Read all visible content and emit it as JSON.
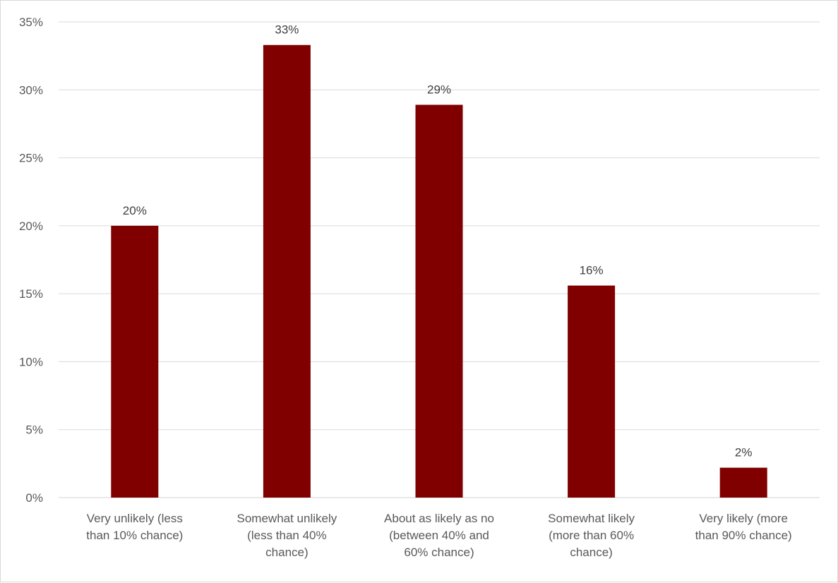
{
  "chart_data": {
    "type": "bar",
    "categories": [
      [
        "Very unlikely (less",
        "than 10% chance)"
      ],
      [
        "Somewhat unlikely",
        "(less than 40%",
        "chance)"
      ],
      [
        "About as likely as no",
        "(between 40% and",
        "60% chance)"
      ],
      [
        "Somewhat likely",
        "(more than 60%",
        "chance)"
      ],
      [
        "Very likely (more",
        "than 90% chance)"
      ]
    ],
    "values": [
      20.0,
      33.3,
      28.9,
      15.6,
      2.2
    ],
    "data_labels": [
      "20%",
      "33%",
      "29%",
      "16%",
      "2%"
    ],
    "y_ticks": [
      0,
      5,
      10,
      15,
      20,
      25,
      30,
      35
    ],
    "y_tick_labels": [
      "0%",
      "5%",
      "10%",
      "15%",
      "20%",
      "25%",
      "30%",
      "35%"
    ],
    "ylim": [
      0,
      35
    ],
    "grid": true,
    "bar_color": "#800000"
  }
}
